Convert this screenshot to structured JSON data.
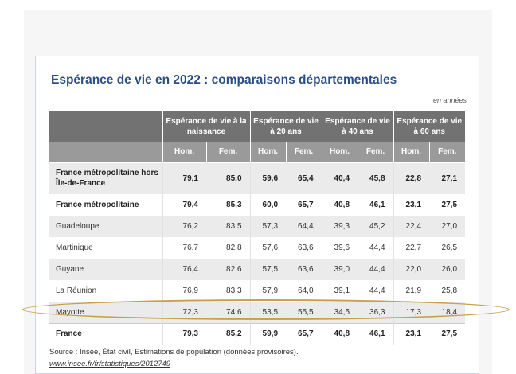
{
  "title": "Espérance de vie en 2022 : comparaisons départementales",
  "unit_note": "en années",
  "groups": [
    "Espérance de vie à la naissance",
    "Espérance de vie à 20 ans",
    "Espérance de vie à 40 ans",
    "Espérance de vie à 60 ans"
  ],
  "subheaders": [
    "Hom.",
    "Fem.",
    "Hom.",
    "Fem.",
    "Hom.",
    "Fem.",
    "Hom.",
    "Fem."
  ],
  "rows": [
    {
      "label": "France métropolitaine hors Île-de-France",
      "bold": true,
      "values": [
        "79,1",
        "85,0",
        "59,6",
        "65,4",
        "40,4",
        "45,8",
        "22,8",
        "27,1"
      ]
    },
    {
      "label": "France métropolitaine",
      "bold": true,
      "values": [
        "79,4",
        "85,3",
        "60,0",
        "65,7",
        "40,8",
        "46,1",
        "23,1",
        "27,5"
      ]
    },
    {
      "label": "Guadeloupe",
      "bold": false,
      "values": [
        "76,2",
        "83,5",
        "57,3",
        "64,4",
        "39,3",
        "45,2",
        "22,4",
        "27,0"
      ]
    },
    {
      "label": "Martinique",
      "bold": false,
      "values": [
        "76,7",
        "82,8",
        "57,6",
        "63,6",
        "39,6",
        "44,4",
        "22,7",
        "26,5"
      ]
    },
    {
      "label": "Guyane",
      "bold": false,
      "values": [
        "76,4",
        "82,6",
        "57,5",
        "63,6",
        "39,0",
        "44,4",
        "22,0",
        "26,0"
      ]
    },
    {
      "label": "La Réunion",
      "bold": false,
      "values": [
        "76,9",
        "83,3",
        "57,9",
        "64,0",
        "39,1",
        "44,4",
        "21,9",
        "25,8"
      ]
    },
    {
      "label": "Mayotte",
      "bold": false,
      "highlighted": true,
      "values": [
        "72,3",
        "74,6",
        "53,5",
        "55,5",
        "34,5",
        "36,3",
        "17,3",
        "18,4"
      ]
    },
    {
      "label": "France",
      "bold": true,
      "values": [
        "79,3",
        "85,2",
        "59,9",
        "65,7",
        "40,8",
        "46,1",
        "23,1",
        "27,5"
      ]
    }
  ],
  "source": "Source : Insee, État civil, Estimations de population (données provisoires).",
  "source_link": "www.insee.fr/fr/statistiques/2012749",
  "colors": {
    "title": "#2a4f86",
    "header_dark": "#727272",
    "header_light": "#9a9a9a",
    "row_stripe": "#ebebeb",
    "highlight_oval": "#c8a04c"
  }
}
